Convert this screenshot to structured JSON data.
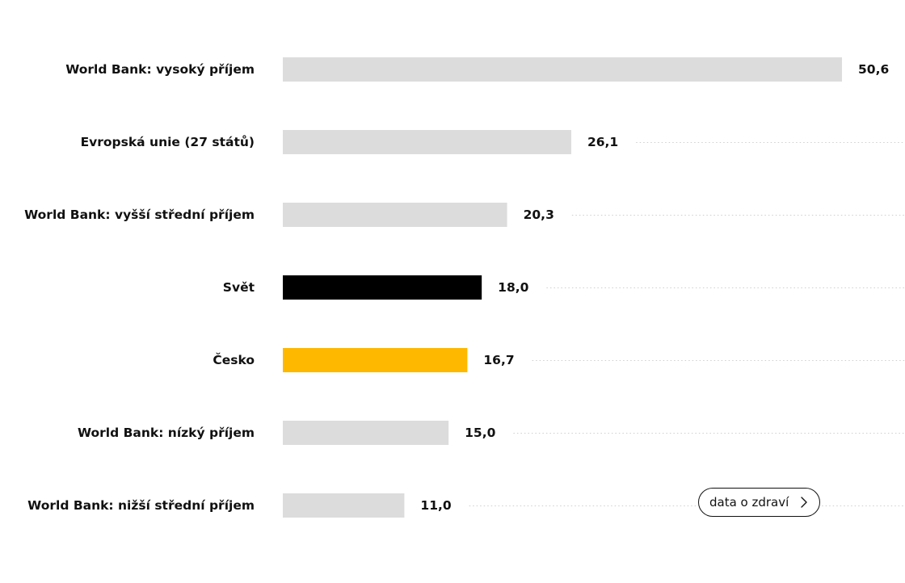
{
  "chart_data": {
    "type": "bar",
    "orientation": "horizontal",
    "categories": [
      "World Bank: vysoký příjem",
      "Evropská unie (27 států)",
      "World Bank: vyšší střední příjem",
      "Svět",
      "Česko",
      "World Bank: nízký příjem",
      "World Bank: nižší střední příjem"
    ],
    "values": [
      50.6,
      26.1,
      20.3,
      18.0,
      16.7,
      15.0,
      11.0
    ],
    "value_labels": [
      "50,6",
      "26,1",
      "20,3",
      "18,0",
      "16,7",
      "15,0",
      "11,0"
    ],
    "xlim": [
      0,
      50.6
    ],
    "grid": false,
    "legend": "none",
    "colors": {
      "default": "#dcdcdc",
      "highlight_world": "#000000",
      "highlight_czech": "#ffb800"
    },
    "bar_colors": [
      "#dcdcdc",
      "#dcdcdc",
      "#dcdcdc",
      "#000000",
      "#ffb800",
      "#dcdcdc",
      "#dcdcdc"
    ]
  },
  "cta": {
    "label": "data o zdraví",
    "icon": "chevron-right-icon"
  }
}
